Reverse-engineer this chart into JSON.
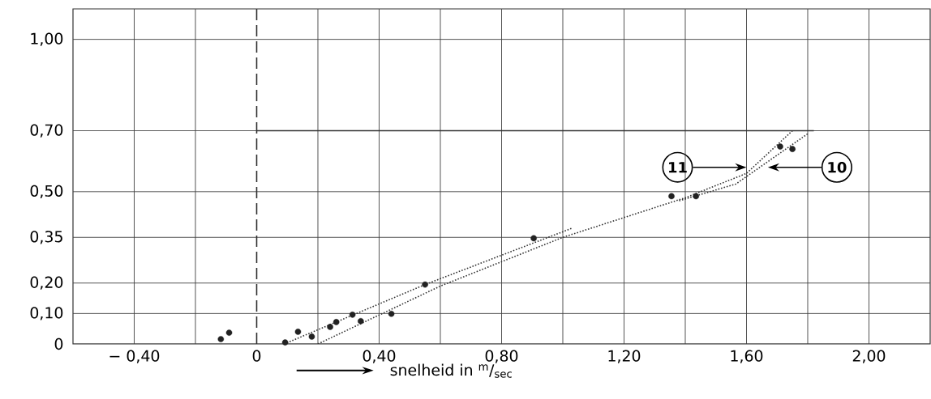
{
  "chart_data": {
    "type": "scatter",
    "xlabel": "snelheid in $^{m}$/$_{sec}$",
    "xlim": [
      -0.6,
      2.2
    ],
    "ylim": [
      0,
      1.1
    ],
    "xticks": [
      {
        "value": -0.4,
        "label": "− 0,40"
      },
      {
        "value": -0.2,
        "label": null
      },
      {
        "value": 0,
        "label": "0"
      },
      {
        "value": 0.2,
        "label": null
      },
      {
        "value": 0.4,
        "label": "0,40"
      },
      {
        "value": 0.6,
        "label": null
      },
      {
        "value": 0.8,
        "label": "0,80"
      },
      {
        "value": 1.0,
        "label": null
      },
      {
        "value": 1.2,
        "label": "1,20"
      },
      {
        "value": 1.4,
        "label": null
      },
      {
        "value": 1.6,
        "label": "1,60"
      },
      {
        "value": 1.8,
        "label": null
      },
      {
        "value": 2.0,
        "label": "2,00"
      }
    ],
    "yticks": [
      {
        "value": 0,
        "label": "0"
      },
      {
        "value": 0.1,
        "label": "0,10"
      },
      {
        "value": 0.2,
        "label": "0,20"
      },
      {
        "value": 0.35,
        "label": "0,35"
      },
      {
        "value": 0.5,
        "label": "0,50"
      },
      {
        "value": 0.7,
        "label": "0,70"
      },
      {
        "value": 1.0,
        "label": "1,00"
      }
    ],
    "grid": true,
    "series": [
      {
        "color": "#222222",
        "marker": "circle",
        "x": [
          -0.117,
          -0.09,
          0.093,
          0.135,
          0.18,
          0.24,
          0.26,
          0.313,
          0.34,
          0.44,
          0.55,
          0.905,
          1.355,
          1.435,
          1.71,
          1.75
        ],
        "values": [
          0.016,
          0.037,
          0.005,
          0.04,
          0.024,
          0.056,
          0.072,
          0.096,
          0.075,
          0.099,
          0.195,
          0.347,
          0.485,
          0.485,
          0.648,
          0.64
        ]
      },
      {
        "type": "line",
        "color": "#333333",
        "line_style": "dotted",
        "x": [
          0.09,
          0.55,
          1.03
        ],
        "values": [
          0.0,
          0.195,
          0.38
        ]
      },
      {
        "type": "line",
        "color": "#333333",
        "line_style": "dotted",
        "x": [
          0.2,
          0.6,
          1.0,
          1.4,
          1.6,
          1.75
        ],
        "values": [
          0.0,
          0.19,
          0.35,
          0.48,
          0.56,
          0.7
        ]
      },
      {
        "type": "line",
        "color": "#333333",
        "line_style": "dotted",
        "x": [
          1.38,
          1.565,
          1.8
        ],
        "values": [
          0.47,
          0.525,
          0.69
        ]
      },
      {
        "type": "line",
        "color": "#333333",
        "line_style": "solid",
        "x": [
          0,
          1.82
        ],
        "values": [
          0.7,
          0.7
        ]
      }
    ],
    "ref_lines": [
      {
        "axis": "x",
        "value": 0,
        "color": "#333333",
        "line_style": "dashed"
      }
    ],
    "annotations": [
      {
        "text": "11",
        "x": 1.6,
        "y": 0.58
      },
      {
        "text": "10",
        "x": 1.67,
        "y": 0.58
      }
    ]
  }
}
